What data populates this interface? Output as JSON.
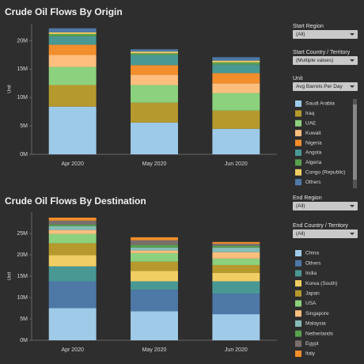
{
  "chart_data": [
    {
      "type": "bar",
      "stacked": true,
      "title": "Crude Oil Flows By Origin",
      "y_label": "Unit",
      "categories": [
        "Apr 2020",
        "May 2020",
        "Jun 2020"
      ],
      "ylim": [
        0,
        23000000
      ],
      "yticks": [
        {
          "value": 0,
          "label": "0M"
        },
        {
          "value": 5000000,
          "label": "5M"
        },
        {
          "value": 10000000,
          "label": "10M"
        },
        {
          "value": 15000000,
          "label": "15M"
        },
        {
          "value": 20000000,
          "label": "20M"
        }
      ],
      "series": [
        {
          "name": "Saudi Arabia",
          "color": "#9ecae9",
          "values": [
            8400000,
            5600000,
            4500000
          ]
        },
        {
          "name": "Iraq",
          "color": "#b6992d",
          "values": [
            3800000,
            3500000,
            3200000
          ]
        },
        {
          "name": "UAE",
          "color": "#8cd17d",
          "values": [
            3200000,
            3100000,
            3100000
          ]
        },
        {
          "name": "Kuwait",
          "color": "#ffbe7d",
          "values": [
            2100000,
            1800000,
            1700000
          ]
        },
        {
          "name": "Nigeria",
          "color": "#f28e2b",
          "values": [
            1800000,
            1700000,
            1800000
          ]
        },
        {
          "name": "Angola",
          "color": "#499894",
          "values": [
            1500000,
            1800000,
            1500000
          ]
        },
        {
          "name": "Algeria",
          "color": "#59a14f",
          "values": [
            400000,
            300000,
            400000
          ]
        },
        {
          "name": "Congo (Republic)",
          "color": "#f1ce63",
          "values": [
            300000,
            300000,
            300000
          ]
        },
        {
          "name": "Others",
          "color": "#4e79a7",
          "values": [
            700000,
            400000,
            600000
          ]
        }
      ]
    },
    {
      "type": "bar",
      "stacked": true,
      "title": "Crude Oil Flows By Destination",
      "y_label": "Unit",
      "categories": [
        "Apr 2020",
        "May 2020",
        "Jun 2020"
      ],
      "ylim": [
        0,
        30000000
      ],
      "yticks": [
        {
          "value": 0,
          "label": "0M"
        },
        {
          "value": 5000000,
          "label": "5M"
        },
        {
          "value": 10000000,
          "label": "10M"
        },
        {
          "value": 15000000,
          "label": "15M"
        },
        {
          "value": 20000000,
          "label": "20M"
        },
        {
          "value": 25000000,
          "label": "25M"
        }
      ],
      "series": [
        {
          "name": "China",
          "color": "#a0cbe8",
          "values": [
            7500000,
            6800000,
            6100000
          ]
        },
        {
          "name": "Others",
          "color": "#4e79a7",
          "values": [
            6300000,
            5000000,
            4800000
          ]
        },
        {
          "name": "India",
          "color": "#499894",
          "values": [
            3500000,
            2000000,
            2900000
          ]
        },
        {
          "name": "Korea (South)",
          "color": "#f1ce63",
          "values": [
            2600000,
            2400000,
            2000000
          ]
        },
        {
          "name": "Japan",
          "color": "#b6992d",
          "values": [
            2800000,
            2200000,
            1800000
          ]
        },
        {
          "name": "USA",
          "color": "#8cd17d",
          "values": [
            2200000,
            2000000,
            1500000
          ]
        },
        {
          "name": "Singapore",
          "color": "#ffbe7d",
          "values": [
            900000,
            600000,
            1500000
          ]
        },
        {
          "name": "Malaysia",
          "color": "#86bcb6",
          "values": [
            900000,
            700000,
            1100000
          ]
        },
        {
          "name": "Netherlands",
          "color": "#59a14f",
          "values": [
            400000,
            600000,
            400000
          ]
        },
        {
          "name": "Egypt",
          "color": "#79706e",
          "values": [
            900000,
            1100000,
            500000
          ]
        },
        {
          "name": "Italy",
          "color": "#f28e2b",
          "values": [
            700000,
            700000,
            400000
          ]
        }
      ]
    }
  ],
  "filters": [
    {
      "label": "Start Region",
      "value": "(All)"
    },
    {
      "label": "Start Country / Territory",
      "value": "(Multiple values)"
    },
    {
      "label": "Unit",
      "value": "Avg Barrels Per Day"
    },
    {
      "label": "End Region",
      "value": "(All)"
    },
    {
      "label": "End Country / Territory",
      "value": "(All)"
    }
  ]
}
